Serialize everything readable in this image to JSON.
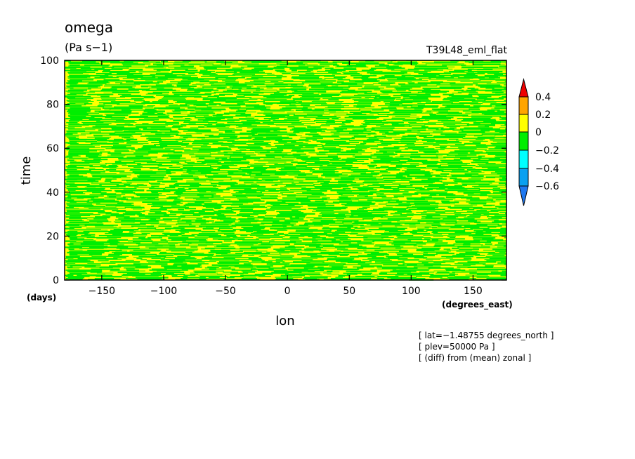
{
  "chart_data": {
    "type": "heatmap",
    "title": "omega",
    "units": "(Pa s−1)",
    "experiment": "T39L48_eml_flat",
    "xlabel": "lon",
    "ylabel": "time",
    "x_units": "(degrees_east)",
    "y_units": "(days)",
    "xlim": [
      -180,
      177
    ],
    "ylim": [
      0,
      100
    ],
    "x_ticks": [
      -150,
      -100,
      -50,
      0,
      50,
      100,
      150
    ],
    "x_tick_labels": [
      "−150",
      "−100",
      "−50",
      "0",
      "50",
      "100",
      "150"
    ],
    "y_ticks": [
      0,
      20,
      40,
      60,
      80,
      100
    ],
    "y_tick_labels": [
      "0",
      "20",
      "40",
      "60",
      "80",
      "100"
    ],
    "field_summary": "Values almost entirely between -0.2 and 0.2, streaky zonal banding alternating between 0 to 0.2 (yellow) and -0.2 to 0 (green)",
    "colorbar": {
      "levels": [
        -0.6,
        -0.4,
        -0.2,
        0,
        0.2,
        0.4
      ],
      "level_labels": [
        "−0.6",
        "−0.4",
        "−0.2",
        "0",
        "0.2",
        "0.4"
      ],
      "colors": [
        "#1f78f0",
        "#0aa0f0",
        "#00ffff",
        "#00ee00",
        "#ffff00",
        "#ffa500",
        "#ee0000"
      ],
      "extend": "both"
    },
    "grid": false,
    "annotations": [
      "[ lat=−1.48755 degrees_north ]",
      "[ plev=50000 Pa ]",
      "[ (diff) from (mean) zonal ]"
    ],
    "field_colors": {
      "positive": "#ffff00",
      "negative": "#00ee00"
    }
  }
}
